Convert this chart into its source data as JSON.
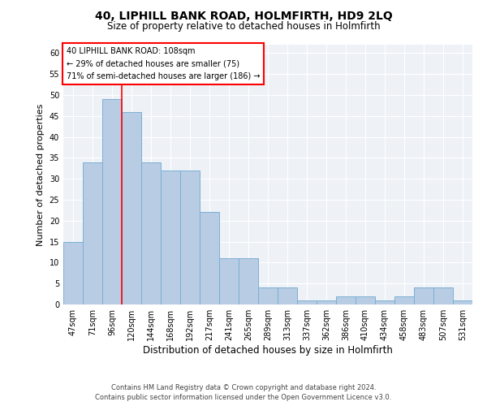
{
  "title": "40, LIPHILL BANK ROAD, HOLMFIRTH, HD9 2LQ",
  "subtitle": "Size of property relative to detached houses in Holmfirth",
  "xlabel": "Distribution of detached houses by size in Holmfirth",
  "ylabel": "Number of detached properties",
  "categories": [
    "47sqm",
    "71sqm",
    "96sqm",
    "120sqm",
    "144sqm",
    "168sqm",
    "192sqm",
    "217sqm",
    "241sqm",
    "265sqm",
    "289sqm",
    "313sqm",
    "337sqm",
    "362sqm",
    "386sqm",
    "410sqm",
    "434sqm",
    "458sqm",
    "483sqm",
    "507sqm",
    "531sqm"
  ],
  "values": [
    15,
    34,
    49,
    46,
    34,
    32,
    32,
    22,
    11,
    11,
    4,
    4,
    1,
    1,
    2,
    2,
    1,
    2,
    4,
    4,
    1
  ],
  "bar_color": "#b8cce4",
  "bar_edge_color": "#7bafd4",
  "red_line_x": 2.5,
  "annotation_title": "40 LIPHILL BANK ROAD: 108sqm",
  "annotation_line1": "← 29% of detached houses are smaller (75)",
  "annotation_line2": "71% of semi-detached houses are larger (186) →",
  "annotation_box_color": "white",
  "annotation_box_edge": "red",
  "ylim": [
    0,
    62
  ],
  "yticks": [
    0,
    5,
    10,
    15,
    20,
    25,
    30,
    35,
    40,
    45,
    50,
    55,
    60
  ],
  "background_color": "#eef2f7",
  "grid_color": "white",
  "footer_line1": "Contains HM Land Registry data © Crown copyright and database right 2024.",
  "footer_line2": "Contains public sector information licensed under the Open Government Licence v3.0."
}
